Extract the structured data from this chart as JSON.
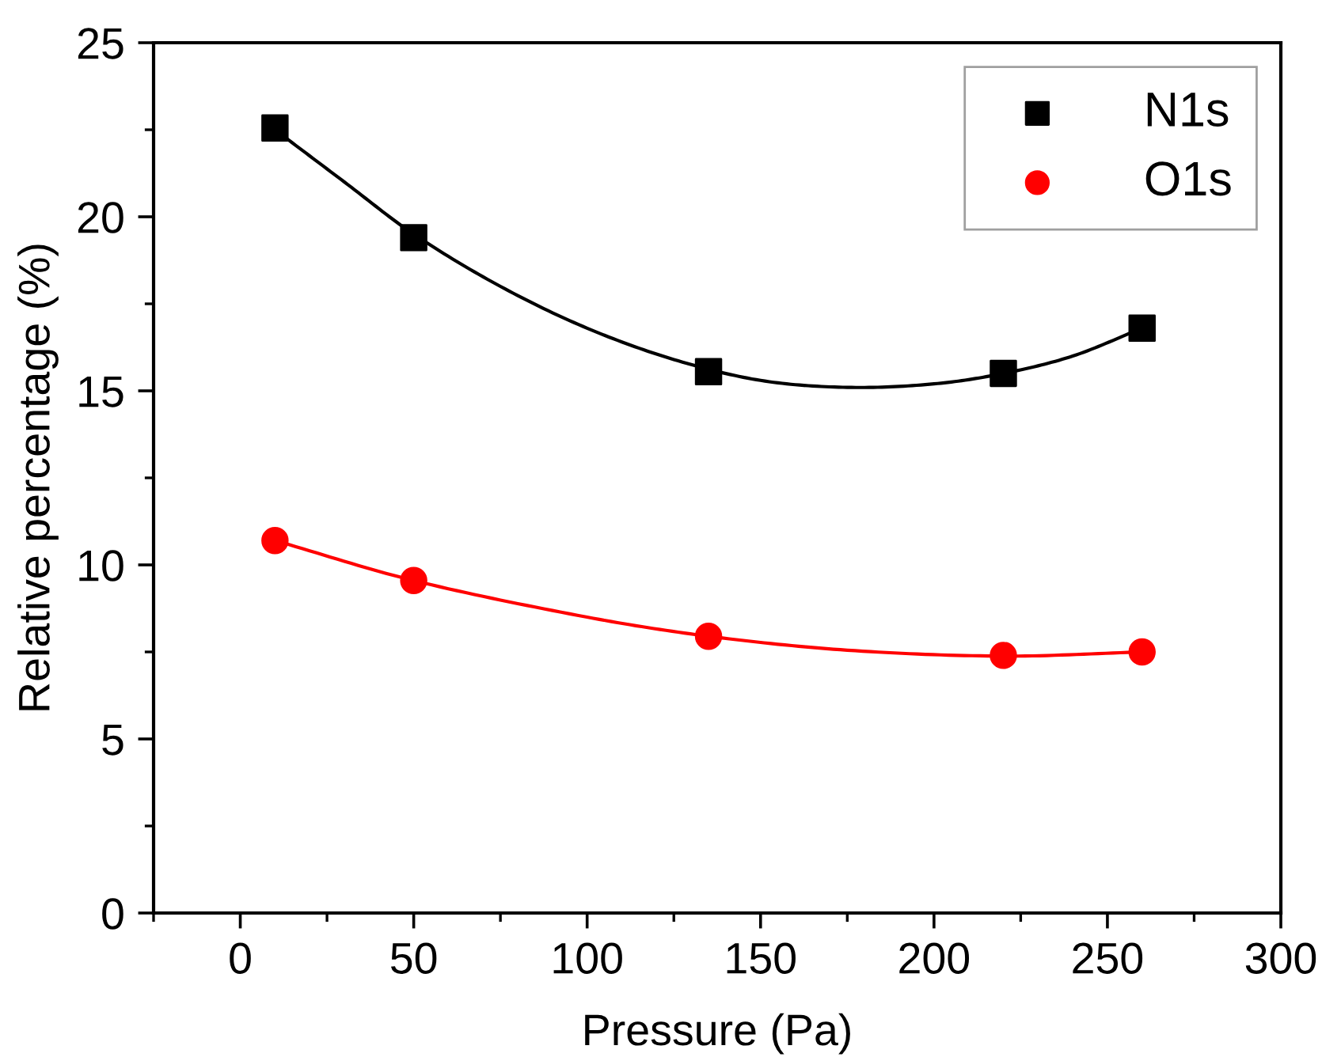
{
  "chart_data": {
    "type": "scatter",
    "xlabel": "Pressure (Pa)",
    "ylabel": "Relative percentage (%)",
    "xlim": [
      -25,
      300
    ],
    "xticks": [
      0,
      50,
      100,
      150,
      200,
      250,
      300
    ],
    "ylim": [
      0,
      25
    ],
    "yticks": [
      0,
      5,
      10,
      15,
      20,
      25
    ],
    "grid": false,
    "legend": "top right",
    "series": [
      {
        "name": "N1s",
        "marker": "square",
        "color": "#000000",
        "x": [
          10,
          50,
          135,
          220,
          260
        ],
        "values": [
          22.55,
          19.4,
          15.55,
          15.5,
          16.8
        ]
      },
      {
        "name": "O1s",
        "marker": "circle",
        "color": "#ff0000",
        "x": [
          10,
          50,
          135,
          220,
          260
        ],
        "values": [
          10.7,
          9.55,
          7.95,
          7.4,
          7.5
        ]
      },
      {
        "type": "line",
        "marker": "none",
        "color": "#000000",
        "x": [
          10,
          30,
          50,
          75,
          100,
          125,
          150,
          175,
          200,
          220,
          240,
          260
        ],
        "values": [
          22.5,
          21.0,
          19.5,
          18.0,
          16.8,
          15.9,
          15.3,
          15.1,
          15.2,
          15.5,
          16.0,
          16.8
        ]
      },
      {
        "type": "line",
        "marker": "none",
        "color": "#ff0000",
        "x": [
          10,
          50,
          100,
          135,
          175,
          220,
          260
        ],
        "values": [
          10.7,
          9.55,
          8.5,
          7.95,
          7.55,
          7.38,
          7.5
        ]
      }
    ]
  }
}
